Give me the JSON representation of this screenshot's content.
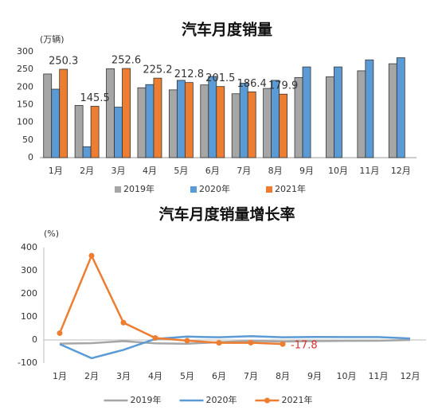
{
  "chart_data": [
    {
      "type": "bar",
      "title": "汽车月度销量",
      "y_label": "(万辆)",
      "categories": [
        "1月",
        "2月",
        "3月",
        "4月",
        "5月",
        "6月",
        "7月",
        "8月",
        "9月",
        "10月",
        "11月",
        "12月"
      ],
      "ylim": [
        0,
        300
      ],
      "yticks": [
        0,
        50,
        100,
        150,
        200,
        250,
        300
      ],
      "grid": false,
      "legend": "bottom",
      "series": [
        {
          "name": "2019年",
          "color": "#a6a6a6",
          "values": [
            237,
            148,
            252,
            198,
            192,
            206,
            181,
            196,
            227,
            229,
            246,
            266
          ]
        },
        {
          "name": "2020年",
          "color": "#5b9bd5",
          "values": [
            194,
            31,
            143,
            207,
            219,
            230,
            211,
            219,
            257,
            257,
            277,
            283
          ]
        },
        {
          "name": "2021年",
          "color": "#ed7d31",
          "values": [
            250.3,
            145.5,
            252.6,
            225.2,
            212.8,
            201.5,
            186.4,
            179.9,
            null,
            null,
            null,
            null
          ],
          "labeled": true
        }
      ]
    },
    {
      "type": "line",
      "title": "汽车月度销量增长率",
      "y_label": "(%)",
      "categories": [
        "1月",
        "2月",
        "3月",
        "4月",
        "5月",
        "6月",
        "7月",
        "8月",
        "9月",
        "10月",
        "11月",
        "12月"
      ],
      "ylim": [
        -100,
        400
      ],
      "yticks": [
        -100,
        0,
        100,
        200,
        300,
        400
      ],
      "grid": false,
      "legend": "bottom",
      "series": [
        {
          "name": "2019年",
          "color": "#a6a6a6",
          "values": [
            -15.8,
            -13.8,
            -5.2,
            -14.6,
            -16.4,
            -9.6,
            -4.3,
            -6.9,
            -5.2,
            -4,
            -3.6,
            0.1
          ]
        },
        {
          "name": "2020年",
          "color": "#5b9bd5",
          "values": [
            -18,
            -79,
            -43,
            4.4,
            14.5,
            11.6,
            16.4,
            11.6,
            12.8,
            12.5,
            12.6,
            6.4
          ]
        },
        {
          "name": "2021年",
          "color": "#ed7d31",
          "values": [
            29.5,
            364.9,
            74.9,
            8.6,
            -3.1,
            -12.4,
            -11.9,
            -17.8,
            null,
            null,
            null,
            null
          ],
          "markers": true,
          "labeled_points": [
            7
          ],
          "label_color": "#e03030"
        }
      ]
    }
  ]
}
